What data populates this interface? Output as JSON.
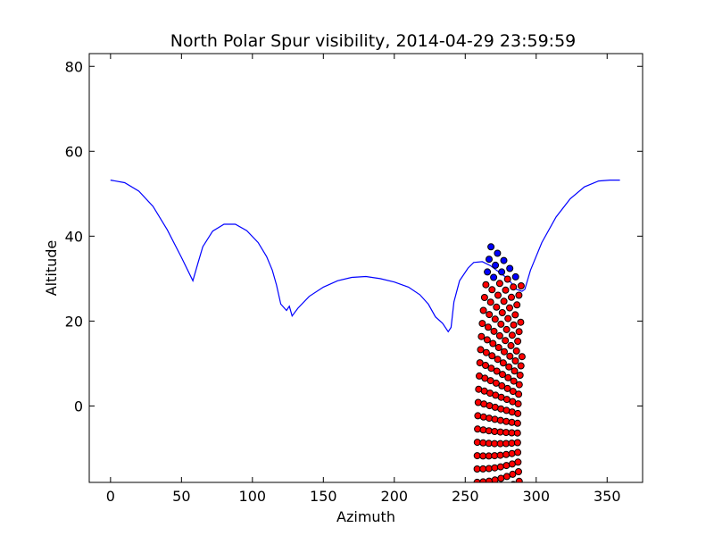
{
  "chart_data": {
    "type": "scatter",
    "title": "North Polar Spur visibility, 2014-04-29 23:59:59",
    "xlabel": "Azimuth",
    "ylabel": "Altitude",
    "xlim": [
      -15,
      375
    ],
    "ylim": [
      -18,
      83
    ],
    "xticks": [
      "0",
      "50",
      "100",
      "150",
      "200",
      "250",
      "300",
      "350"
    ],
    "yticks": [
      "0",
      "20",
      "40",
      "60",
      "80"
    ],
    "grid": false,
    "legend": "none",
    "colors": {
      "blue_dots": "#0000ff",
      "red_dots": "#ff0000",
      "curve": "#0000ff",
      "dot_edge": "#000000",
      "axes": "#000000"
    },
    "curve": {
      "x": [
        0,
        10,
        20,
        30,
        40,
        50,
        58,
        61.5,
        65,
        72,
        80,
        88,
        96,
        104,
        110,
        114,
        117,
        120,
        124,
        126,
        128,
        132,
        140,
        150,
        160,
        170,
        180,
        190,
        200,
        210,
        218,
        224,
        229,
        234,
        238,
        240,
        242,
        246,
        252,
        256,
        262,
        268,
        274,
        280,
        286,
        290,
        292,
        296,
        304,
        314,
        324,
        334,
        344,
        352,
        359
      ],
      "y": [
        53.2,
        52.6,
        50.6,
        47.0,
        41.5,
        35.0,
        29.5,
        33.5,
        37.5,
        41.2,
        42.8,
        42.8,
        41.3,
        38.5,
        35.2,
        32.0,
        28.5,
        24.0,
        22.5,
        23.5,
        21.2,
        23.0,
        25.8,
        28.0,
        29.5,
        30.3,
        30.5,
        30.0,
        29.2,
        28.0,
        26.2,
        24.0,
        21.0,
        19.5,
        17.5,
        18.5,
        24.5,
        29.5,
        32.5,
        33.8,
        34.0,
        33.0,
        31.5,
        30.0,
        27.5,
        27.0,
        27.5,
        32.0,
        38.5,
        44.5,
        48.8,
        51.6,
        53.0,
        53.2,
        53.2
      ]
    }
  }
}
